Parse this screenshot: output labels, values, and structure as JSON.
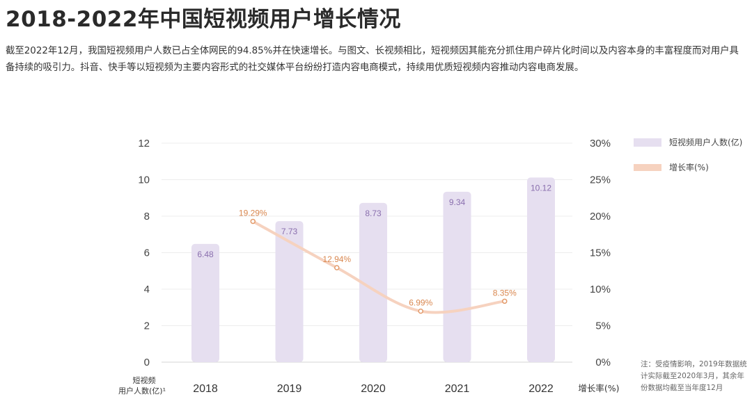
{
  "title": "2018-2022年中国短视频用户增长情况",
  "description": "截至2022年12月，我国短视频用户人数已占全体网民的94.85%并在快速增长。与图文、长视频相比，短视频因其能充分抓住用户碎片化时间以及内容本身的丰富程度而对用户具备持续的吸引力。抖音、快手等以短视频为主要内容形式的社交媒体平台纷纷打造内容电商模式，持续用优质短视频内容推动内容电商发展。",
  "note": "注：受疫情影响，2019年数据统计实际截至2020年3月，其余年份数据均截至当年度12月",
  "colors": {
    "bar": "#e6dff0",
    "bar_label": "#8a6fae",
    "line": "#f6d2bf",
    "line_marker": "#e39a6a",
    "line_label": "#d9874f"
  },
  "chart_data": {
    "type": "bar",
    "categories": [
      "2018",
      "2019",
      "2020",
      "2021",
      "2022"
    ],
    "series": [
      {
        "name": "短视频用户人数(亿)",
        "type": "bar",
        "axis": "left",
        "values": [
          6.48,
          7.73,
          8.73,
          9.34,
          10.12
        ],
        "labels": [
          "6.48",
          "7.73",
          "8.73",
          "9.34",
          "10.12"
        ]
      },
      {
        "name": "增长率(%)",
        "type": "line",
        "axis": "right",
        "x": [
          "2019",
          "2020",
          "2021",
          "2022"
        ],
        "values": [
          19.29,
          12.94,
          6.99,
          8.35
        ],
        "labels": [
          "19.29%",
          "12.94%",
          "6.99%",
          "8.35%"
        ]
      }
    ],
    "ylim": [
      0,
      12
    ],
    "yticks": [
      "0",
      "2",
      "4",
      "6",
      "8",
      "10",
      "12"
    ],
    "y2lim": [
      0,
      30
    ],
    "y2ticks": [
      "0%",
      "5%",
      "10%",
      "15%",
      "20%",
      "25%",
      "30%"
    ],
    "ylabel_lines": [
      "短视频",
      "用户人数(亿)¹"
    ],
    "y2label": "增长率(%)",
    "legend": {
      "position": "top-right",
      "items": [
        "短视频用户人数(亿)",
        "增长率(%)"
      ]
    },
    "grid": true
  }
}
